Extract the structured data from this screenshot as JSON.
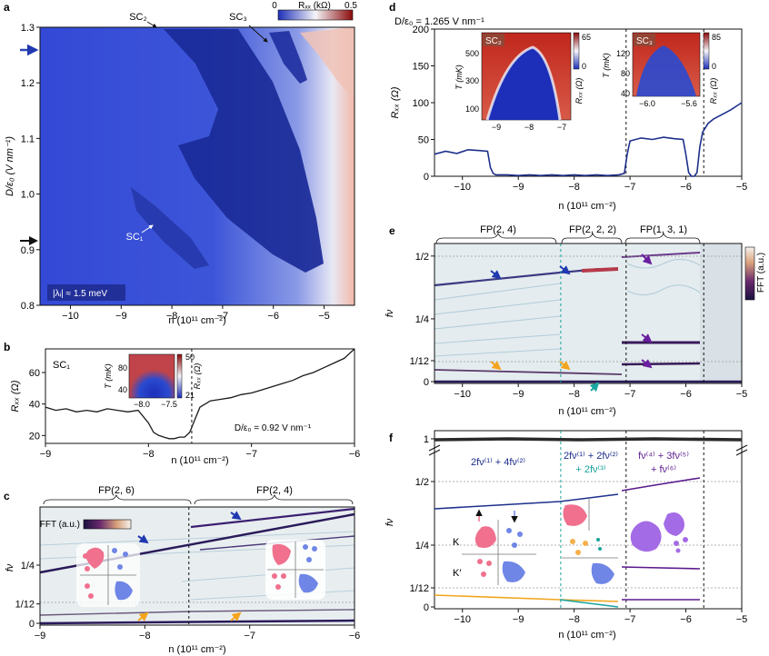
{
  "colors": {
    "rxx_low": "#1d2fb8",
    "rxx_mid": "#f4f4f8",
    "rxx_high": "#8a0a0a",
    "fft_high": "#3a0a5e",
    "fft_low": "#f6f3ee",
    "trace_blue": "#1d2f8c",
    "trace_black": "#1a1a1a",
    "arrow_blue": "#2038b0",
    "arrow_orange": "#f2a51d",
    "arrow_purple": "#6a1ea0",
    "arrow_teal": "#1aa7a0",
    "lobe_pink": "#f0708e",
    "lobe_blue": "#6f86e6",
    "lobe_orange": "#f5b04a",
    "lobe_purple": "#a46be6",
    "guide_teal": "#18a39b"
  },
  "panels": {
    "a": "a",
    "b": "b",
    "c": "c",
    "d": "d",
    "e": "e",
    "f": "f"
  },
  "units_n": "n (10¹¹ cm⁻²)",
  "chart_data": [
    {
      "panel": "a",
      "type": "heatmap",
      "xlabel": "n (10¹¹ cm⁻²)",
      "ylabel": "D/ε₀ (V nm⁻¹)",
      "xlim": [
        -10.6,
        -4.4
      ],
      "ylim": [
        0.8,
        1.3
      ],
      "xticks": [
        "−10",
        "−9",
        "−8",
        "−7",
        "−6",
        "−5"
      ],
      "xtick_values": [
        -10,
        -9,
        -8,
        -7,
        -6,
        -5
      ],
      "yticks": [
        "0.8",
        "0.9",
        "1.0",
        "1.1",
        "1.2",
        "1.3"
      ],
      "ytick_values": [
        0.8,
        0.9,
        1.0,
        1.1,
        1.2,
        1.3
      ],
      "colorbar": {
        "label": "Rₓₓ (kΩ)",
        "min": "0",
        "max": "0.5"
      },
      "annotations": [
        "SC₂",
        "SC₃",
        "SC₁",
        "|λᵢ| ≈ 1.5 meV"
      ],
      "markers_D": [
        1.265,
        0.92
      ]
    },
    {
      "panel": "b",
      "type": "line",
      "label": "SC₁",
      "xlabel": "n (10¹¹ cm⁻²)",
      "ylabel": "Rₓₓ (Ω)",
      "xlim": [
        -9,
        -6
      ],
      "ylim": [
        15,
        75
      ],
      "xticks": [
        "−9",
        "−8",
        "−7",
        "−6"
      ],
      "xtick_values": [
        -9,
        -8,
        -7,
        -6
      ],
      "yticks": [
        "20",
        "40",
        "60"
      ],
      "ytick_values": [
        20,
        40,
        60
      ],
      "condition": "D/ε₀ = 0.92 V nm⁻¹",
      "dashed_x": -7.58,
      "x": [
        -9.0,
        -8.9,
        -8.8,
        -8.7,
        -8.6,
        -8.5,
        -8.4,
        -8.3,
        -8.2,
        -8.1,
        -8.0,
        -7.95,
        -7.9,
        -7.85,
        -7.8,
        -7.75,
        -7.7,
        -7.65,
        -7.6,
        -7.55,
        -7.5,
        -7.45,
        -7.4,
        -7.3,
        -7.2,
        -7.1,
        -7.0,
        -6.9,
        -6.8,
        -6.7,
        -6.6,
        -6.5,
        -6.4,
        -6.3,
        -6.2,
        -6.1,
        -6.0
      ],
      "y": [
        38,
        36,
        37,
        35,
        36,
        35,
        37,
        36,
        35,
        36,
        28,
        22,
        20,
        19,
        18,
        18,
        19,
        19,
        22,
        30,
        38,
        40,
        42,
        43,
        44,
        46,
        47,
        49,
        51,
        53,
        55,
        58,
        60,
        63,
        66,
        69,
        75
      ],
      "inset": {
        "ylabel": "T (mK)",
        "yticks": [
          "40",
          "80"
        ],
        "xticks": [
          "−8.0",
          "−7.5"
        ],
        "colorbar": {
          "label": "Rₓₓ (Ω)",
          "min": "21",
          "max": "50"
        }
      }
    },
    {
      "panel": "c",
      "type": "heatmap",
      "xlabel": "n (10¹¹ cm⁻²)",
      "ylabel": "fν",
      "xlim": [
        -9,
        -6
      ],
      "ylim": [
        0,
        0.5
      ],
      "xticks": [
        "−9",
        "−8",
        "−7",
        "−6"
      ],
      "xtick_values": [
        -9,
        -8,
        -7,
        -6
      ],
      "yticks": [
        "0",
        "1/12",
        "1/4"
      ],
      "ytick_values": [
        0,
        0.0833,
        0.25
      ],
      "regions": [
        "FP(2, 6)",
        "FP(2, 4)"
      ],
      "boundary_x": -7.58,
      "colorbar": {
        "label": "FFT (a.u.)"
      }
    },
    {
      "panel": "d",
      "type": "line",
      "condition": "D/ε₀ = 1.265 V nm⁻¹",
      "xlabel": "n (10¹¹ cm⁻²)",
      "ylabel": "Rₓₓ (Ω)",
      "xlim": [
        -10.5,
        -5
      ],
      "ylim": [
        0,
        200
      ],
      "xticks": [
        "−10",
        "−9",
        "−8",
        "−7",
        "−6",
        "−5"
      ],
      "xtick_values": [
        -10,
        -9,
        -8,
        -7,
        -6,
        -5
      ],
      "yticks": [
        "0",
        "50",
        "100",
        "150",
        "200"
      ],
      "ytick_values": [
        0,
        50,
        100,
        150,
        200
      ],
      "dashed_x": [
        -7.07,
        -5.68
      ],
      "x": [
        -10.5,
        -10.3,
        -10.1,
        -9.9,
        -9.7,
        -9.55,
        -9.5,
        -9.45,
        -9.4,
        -9.2,
        -9.0,
        -8.8,
        -8.6,
        -8.4,
        -8.2,
        -8.0,
        -7.8,
        -7.6,
        -7.4,
        -7.2,
        -7.1,
        -7.05,
        -7.0,
        -6.8,
        -6.6,
        -6.4,
        -6.2,
        -6.05,
        -6.0,
        -5.95,
        -5.9,
        -5.85,
        -5.8,
        -5.75,
        -5.7,
        -5.6,
        -5.5,
        -5.4,
        -5.3,
        -5.2,
        -5.1,
        -5.0
      ],
      "y": [
        30,
        34,
        31,
        36,
        35,
        34,
        12,
        4,
        2,
        2,
        1,
        2,
        1,
        2,
        1,
        2,
        1,
        2,
        1,
        2,
        4,
        30,
        48,
        52,
        50,
        53,
        51,
        50,
        30,
        5,
        0,
        0,
        5,
        40,
        60,
        72,
        78,
        82,
        86,
        90,
        95,
        100
      ],
      "insets": [
        {
          "label": "SC₂",
          "ylabel": "T (mK)",
          "yticks": [
            "100",
            "300",
            "500"
          ],
          "xticks": [
            "−9",
            "−8",
            "−7"
          ],
          "colorbar": {
            "label": "Rₓₓ (Ω)",
            "min": "0",
            "max": "65"
          }
        },
        {
          "label": "SC₃",
          "ylabel": "T (mK)",
          "yticks": [
            "40",
            "80",
            "120"
          ],
          "xticks": [
            "−6.0",
            "−5.6"
          ],
          "colorbar": {
            "label": "Rₓₓ (Ω)",
            "min": "0",
            "max": "85"
          }
        }
      ]
    },
    {
      "panel": "e",
      "type": "heatmap",
      "xlabel": "n (10¹¹ cm⁻²)",
      "ylabel": "fν",
      "xlim": [
        -10.5,
        -5
      ],
      "ylim": [
        0,
        0.55
      ],
      "xticks": [
        "−10",
        "−9",
        "−8",
        "−7",
        "−6",
        "−5"
      ],
      "xtick_values": [
        -10,
        -9,
        -8,
        -7,
        -6,
        -5
      ],
      "yticks": [
        "0",
        "1/12",
        "1/4",
        "1/2"
      ],
      "ytick_values": [
        0,
        0.0833,
        0.25,
        0.5
      ],
      "regions": [
        "FP(2, 4)",
        "FP(2, 2, 2)",
        "FP(1, 3, 1)"
      ],
      "boundaries_x": [
        -8.24,
        -7.07,
        -5.68
      ],
      "colorbar": {
        "label": "FFT (a.u.)"
      }
    },
    {
      "panel": "f",
      "type": "line",
      "xlabel": "n (10¹¹ cm⁻²)",
      "ylabel": "fν",
      "xlim": [
        -10.5,
        -5
      ],
      "xticks": [
        "−10",
        "−9",
        "−8",
        "−7",
        "−6",
        "−5"
      ],
      "xtick_values": [
        -10,
        -9,
        -8,
        -7,
        -6,
        -5
      ],
      "yticks": [
        "0",
        "1/12",
        "1/4",
        "1/2",
        "1"
      ],
      "labels": {
        "r1": "2fν⁽¹⁾ + 4fν⁽²⁾",
        "r2a": "2fν⁽¹⁾ + 2fν⁽²⁾",
        "r2b": "+ 2fν⁽³⁾",
        "r3a": "fν⁽⁴⁾ + 3fν⁽⁵⁾",
        "r3b": "+ fν⁽⁶⁾",
        "K": "K",
        "Kp": "K′"
      },
      "boundaries_x": [
        -8.24,
        -7.07,
        -5.68
      ]
    }
  ]
}
